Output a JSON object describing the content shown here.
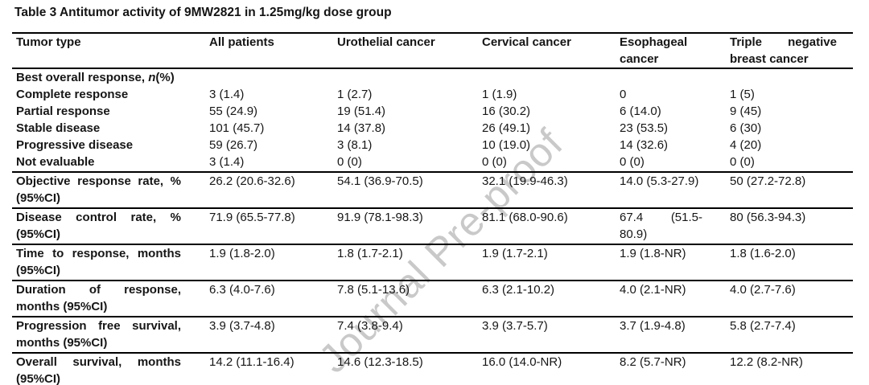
{
  "title": "Table 3 Antitumor activity of 9MW2821 in 1.25mg/kg dose group",
  "watermark": "Journal Pre-proof",
  "colors": {
    "text": "#161616",
    "rule": "#000000",
    "watermark": "#c9c9c9",
    "background": "#ffffff"
  },
  "table": {
    "columns": [
      "Tumor type",
      "All patients",
      "Urothelial cancer",
      "Cervical cancer",
      "Esophageal cancer",
      "Triple negative breast cancer"
    ],
    "rows": [
      {
        "label": "Best overall response, n(%)",
        "label_parts": [
          {
            "text": "Best overall response, "
          },
          {
            "text": "n",
            "italic": true
          },
          {
            "text": "(%)"
          }
        ],
        "cells": [
          "",
          "",
          "",
          "",
          ""
        ],
        "rule_below": false
      },
      {
        "label": "Complete response",
        "cells": [
          "3 (1.4)",
          "1 (2.7)",
          "1 (1.9)",
          "0",
          "1 (5)"
        ],
        "rule_below": false
      },
      {
        "label": "Partial response",
        "cells": [
          "55 (24.9)",
          "19 (51.4)",
          "16 (30.2)",
          "6 (14.0)",
          "9 (45)"
        ],
        "rule_below": false
      },
      {
        "label": "Stable disease",
        "cells": [
          "101 (45.7)",
          "14 (37.8)",
          "26 (49.1)",
          "23 (53.5)",
          "6 (30)"
        ],
        "rule_below": false
      },
      {
        "label": "Progressive disease",
        "cells": [
          "59 (26.7)",
          "3 (8.1)",
          "10 (19.0)",
          "14 (32.6)",
          "4 (20)"
        ],
        "rule_below": false
      },
      {
        "label": "Not evaluable",
        "cells": [
          "3 (1.4)",
          "0 (0)",
          "0 (0)",
          "0 (0)",
          "0 (0)"
        ],
        "rule_below": true
      },
      {
        "label": "Objective response rate, % (95%CI)",
        "cells": [
          "26.2 (20.6-32.6)",
          "54.1 (36.9-70.5)",
          "32.1 (19.9-46.3)",
          "14.0 (5.3-27.9)",
          "50 (27.2-72.8)"
        ],
        "rule_below": true
      },
      {
        "label": "Disease control rate, % (95%CI)",
        "cells": [
          "71.9 (65.5-77.8)",
          "91.9 (78.1-98.3)",
          "81.1 (68.0-90.6)",
          "67.4 (51.5-80.9)",
          "80 (56.3-94.3)"
        ],
        "rule_below": true
      },
      {
        "label": "Time to response, months (95%CI)",
        "cells": [
          "1.9 (1.8-2.0)",
          "1.8 (1.7-2.1)",
          "1.9 (1.7-2.1)",
          "1.9 (1.8-NR)",
          "1.8 (1.6-2.0)"
        ],
        "rule_below": true
      },
      {
        "label": "Duration of response, months (95%CI)",
        "cells": [
          "6.3 (4.0-7.6)",
          "7.8 (5.1-13.6)",
          "6.3 (2.1-10.2)",
          "4.0 (2.1-NR)",
          "4.0 (2.7-7.6)"
        ],
        "rule_below": true
      },
      {
        "label": "Progression free survival, months (95%CI)",
        "cells": [
          "3.9 (3.7-4.8)",
          "7.4 (3.8-9.4)",
          "3.9 (3.7-5.7)",
          "3.7 (1.9-4.8)",
          "5.8 (2.7-7.4)"
        ],
        "rule_below": true
      },
      {
        "label": "Overall survival, months (95%CI)",
        "cells": [
          "14.2 (11.1-16.4)",
          "14.6 (12.3-18.5)",
          "16.0 (14.0-NR)",
          "8.2 (5.7-NR)",
          "12.2 (8.2-NR)"
        ],
        "rule_below": true
      }
    ]
  }
}
